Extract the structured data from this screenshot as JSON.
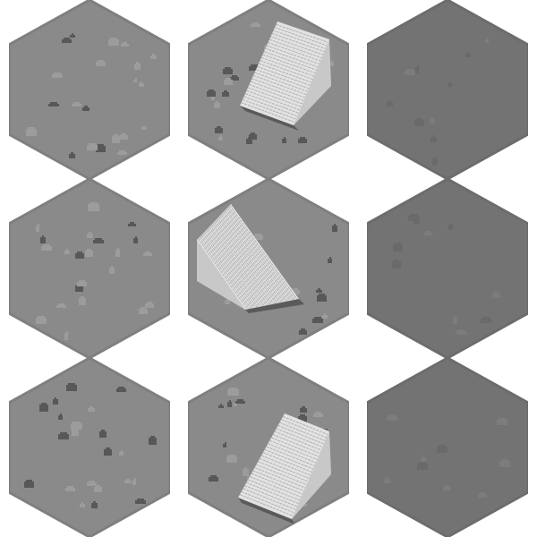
{
  "sheet": {
    "rows": 3,
    "cols": 3,
    "background_color": "#ffffff"
  },
  "palette": {
    "light_ground": "#8a8a8a",
    "light_ground_edge": "#7f7f7f",
    "dark_ground": "#737373",
    "dark_ground_edge": "#6c6c6c",
    "pebble_light": "#9c9c9c",
    "pebble_dark": "#585858",
    "ramp_top": "#e2e2e2",
    "ramp_side": "#c8c8c8",
    "ramp_stripe": "#b0b0b0",
    "ramp_shadow": "#5a5a5a"
  },
  "tiles": [
    {
      "id": "r1c1",
      "kind": "ground-light",
      "ramp": "none"
    },
    {
      "id": "r1c2",
      "kind": "ground-light",
      "ramp": "ramp-right"
    },
    {
      "id": "r1c3",
      "kind": "ground-dark",
      "ramp": "none"
    },
    {
      "id": "r2c1",
      "kind": "ground-light",
      "ramp": "none"
    },
    {
      "id": "r2c2",
      "kind": "ground-light",
      "ramp": "ramp-left"
    },
    {
      "id": "r2c3",
      "kind": "ground-dark",
      "ramp": "none"
    },
    {
      "id": "r3c1",
      "kind": "ground-light",
      "ramp": "none"
    },
    {
      "id": "r3c2",
      "kind": "ground-light",
      "ramp": "ramp-right-low"
    },
    {
      "id": "r3c3",
      "kind": "ground-dark",
      "ramp": "none"
    }
  ]
}
